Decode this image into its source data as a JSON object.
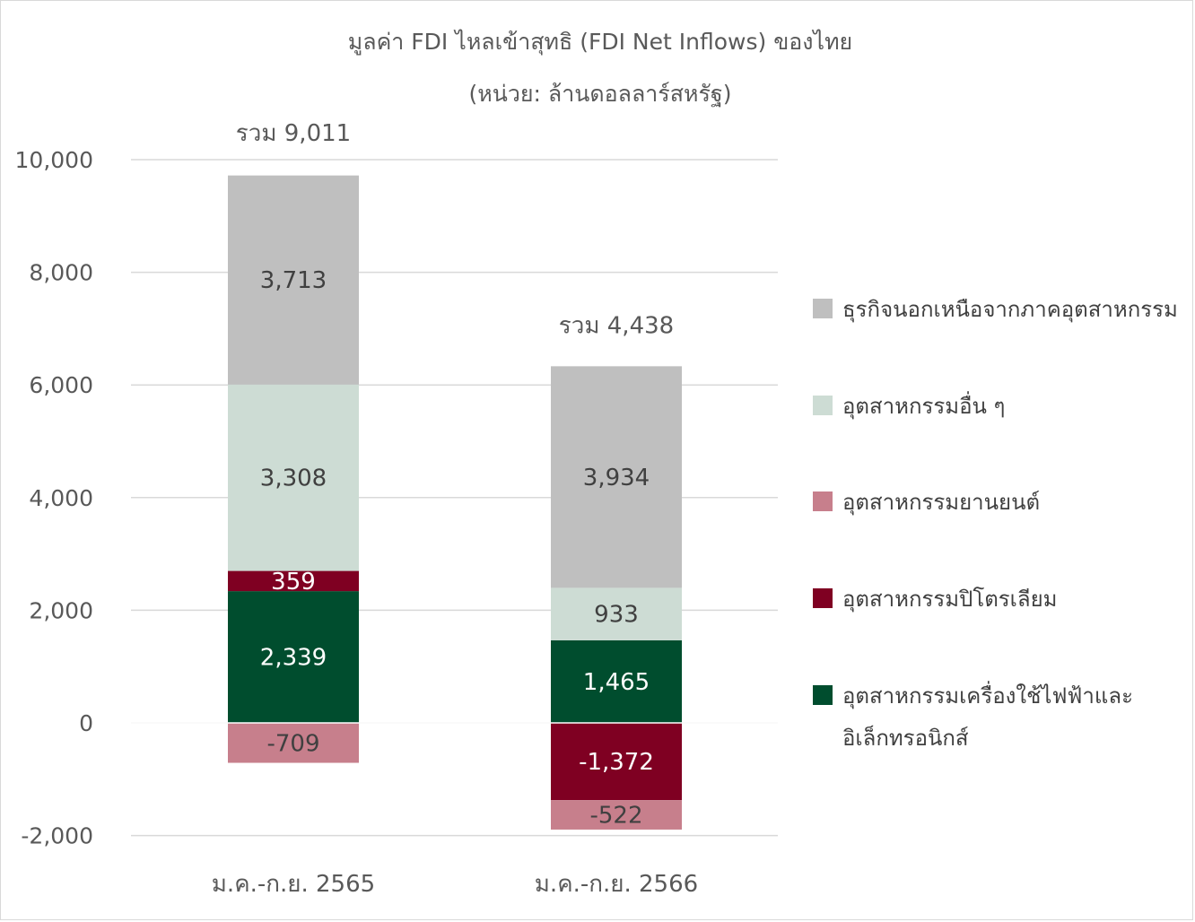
{
  "chart_data": {
    "type": "bar",
    "stacked": true,
    "title": "มูลค่า FDI ไหลเข้าสุทธิ (FDI Net Inflows)  ของไทย",
    "subtitle": "(หน่วย: ล้านดอลลาร์สหรัฐ)",
    "categories": [
      "ม.ค.-ก.ย. 2565",
      "ม.ค.-ก.ย. 2566"
    ],
    "ylim": [
      -2000,
      10000
    ],
    "yticks": [
      -2000,
      0,
      2000,
      4000,
      6000,
      8000,
      10000
    ],
    "ytick_labels": [
      "-2,000",
      "0",
      "2,000",
      "4,000",
      "6,000",
      "8,000",
      "10,000"
    ],
    "grid": true,
    "legend_position": "right",
    "series": [
      {
        "name": "อุตสาหกรรมเครื่องใช้ไฟฟ้าและ\nอิเล็กทรอนิกส์",
        "legend_lines": [
          "อุตสาหกรรมเครื่องใช้ไฟฟ้าและ",
          "อิเล็กทรอนิกส์"
        ],
        "color": "#004d2e",
        "label_color": "#ffffff",
        "values": [
          2339,
          1465
        ],
        "labels": [
          "2,339",
          "1,465"
        ]
      },
      {
        "name": "อุตสาหกรรมปิโตรเลียม",
        "legend_lines": [
          "อุตสาหกรรมปิโตรเลียม"
        ],
        "color": "#7f0022",
        "label_color": "#ffffff",
        "values": [
          359,
          -1372
        ],
        "labels": [
          "359",
          "-1,372"
        ]
      },
      {
        "name": "อุตสาหกรรมยานยนต์",
        "legend_lines": [
          "อุตสาหกรรมยานยนต์"
        ],
        "color": "#c77f8c",
        "label_color": "#404040",
        "values": [
          -709,
          -522
        ],
        "labels": [
          "-709",
          "-522"
        ]
      },
      {
        "name": "อุตสาหกรรมอื่น ๆ",
        "legend_lines": [
          "อุตสาหกรรมอื่น ๆ"
        ],
        "color": "#cddcd4",
        "label_color": "#404040",
        "values": [
          3308,
          933
        ],
        "labels": [
          "3,308",
          "933"
        ]
      },
      {
        "name": "ธุรกิจนอกเหนือจากภาคอุตสาหกรรม",
        "legend_lines": [
          "ธุรกิจนอกเหนือจากภาคอุตสาหกรรม"
        ],
        "color": "#bfbfbf",
        "label_color": "#404040",
        "values": [
          3713,
          3934
        ],
        "labels": [
          "3,713",
          "3,934"
        ]
      }
    ],
    "legend_order": [
      4,
      3,
      2,
      1,
      0
    ],
    "totals": [
      {
        "prefix": "รวม",
        "value": 9011,
        "label": "9,011"
      },
      {
        "prefix": "รวม",
        "value": 4438,
        "label": "4,438"
      }
    ]
  }
}
